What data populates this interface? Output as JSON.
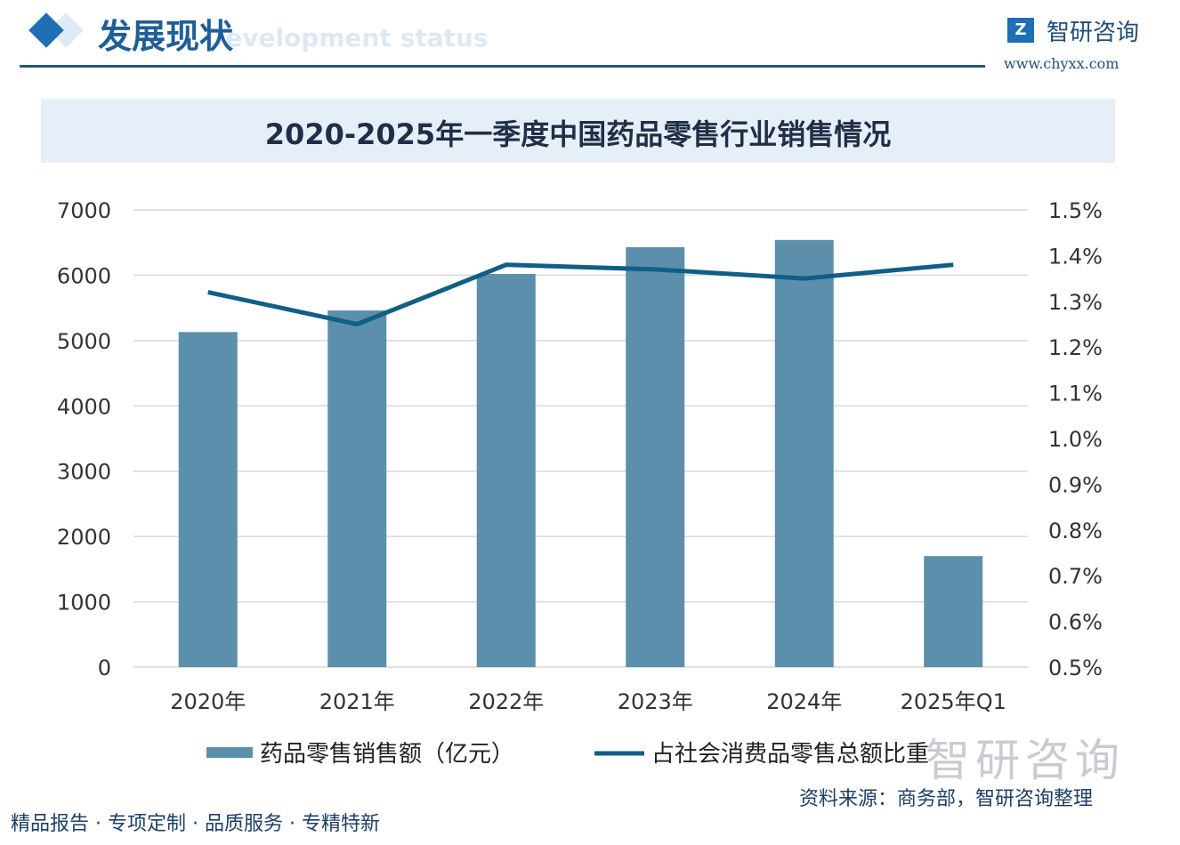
{
  "header": {
    "section_title": "发展现状",
    "section_subtitle": "Development status",
    "brand_name": "智研咨询",
    "brand_url": "www.chyxx.com",
    "logo_mark": "Z"
  },
  "chart_data": {
    "type": "bar+line",
    "title": "2020-2025年一季度中国药品零售行业销售情况",
    "categories": [
      "2020年",
      "2021年",
      "2022年",
      "2023年",
      "2024年",
      "2025年Q1"
    ],
    "series": [
      {
        "name": "药品零售销售额（亿元）",
        "type": "bar",
        "axis": "left",
        "values": [
          5130,
          5460,
          6020,
          6430,
          6540,
          1700
        ]
      },
      {
        "name": "占社会消费品零售总额比重",
        "type": "line",
        "axis": "right",
        "values": [
          1.32,
          1.25,
          1.38,
          1.37,
          1.35,
          1.38
        ]
      }
    ],
    "left_axis": {
      "ylim": [
        0,
        7000
      ],
      "ticks": [
        "0",
        "1000",
        "2000",
        "3000",
        "4000",
        "5000",
        "6000",
        "7000"
      ]
    },
    "right_axis": {
      "ylim": [
        0.5,
        1.5
      ],
      "ticks": [
        "0.5%",
        "0.6%",
        "0.7%",
        "0.8%",
        "0.9%",
        "1.0%",
        "1.1%",
        "1.2%",
        "1.3%",
        "1.4%",
        "1.5%"
      ]
    },
    "grid": true,
    "legend": "bottom",
    "colors": {
      "bar": "#5b8fab",
      "line": "#0f5f86",
      "grid": "#d9d9d9"
    }
  },
  "footer": {
    "tagline": "精品报告 · 专项定制 · 品质服务 · 专精特新",
    "source": "资料来源：商务部，智研咨询整理",
    "watermark": "智研咨询"
  }
}
